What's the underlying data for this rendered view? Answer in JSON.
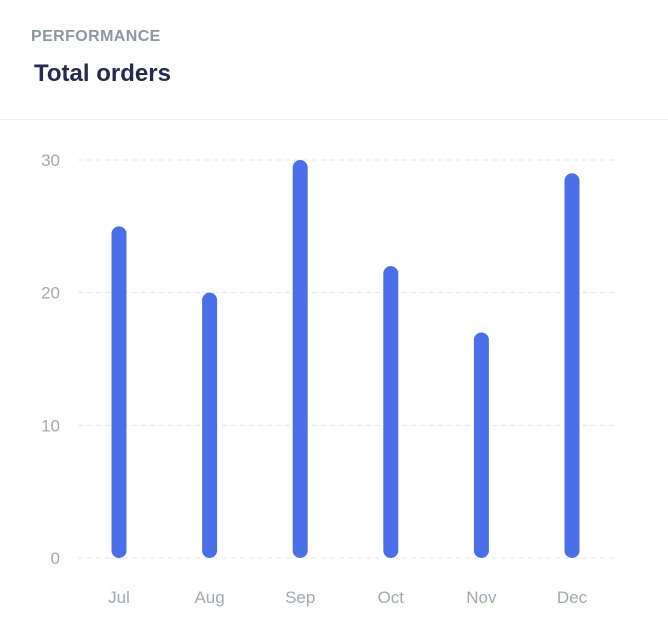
{
  "header": {
    "eyebrow": "PERFORMANCE",
    "title": "Total orders"
  },
  "chart_data": {
    "type": "bar",
    "title": "Total orders",
    "xlabel": "",
    "ylabel": "",
    "categories": [
      "Jul",
      "Aug",
      "Sep",
      "Oct",
      "Nov",
      "Dec"
    ],
    "values": [
      25,
      20,
      30,
      22,
      17,
      29
    ],
    "ylim": [
      0,
      30
    ],
    "yticks": [
      0,
      10,
      20,
      30
    ],
    "grid": true,
    "legend": "none",
    "bar_color": "#4a6fe8"
  }
}
